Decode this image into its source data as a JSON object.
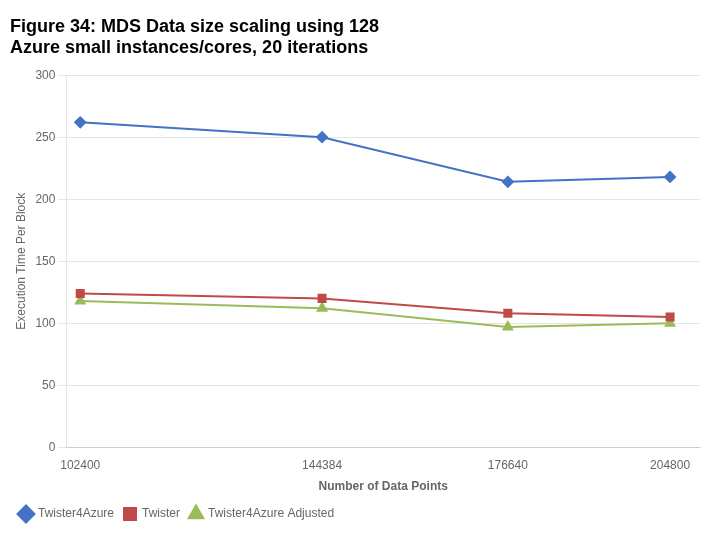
{
  "chart_data": {
    "type": "line",
    "title": [
      "Figure 34: MDS Data size scaling using 128",
      "Azure small instances/cores, 20 iterations"
    ],
    "x_label": "Number of Data Points",
    "y_label": "Execution Time Per Block",
    "x": [
      102400,
      144384,
      176640,
      204800
    ],
    "series": [
      {
        "name": "Twister4Azure",
        "color": "#4472C4",
        "marker": "diamond",
        "values": [
          262,
          250,
          214,
          218
        ]
      },
      {
        "name": "Twister",
        "color": "#BE4B48",
        "marker": "square",
        "values": [
          124,
          120,
          108,
          105
        ]
      },
      {
        "name": "Twister4Azure Adjusted",
        "color": "#9BBB59",
        "marker": "triangle",
        "values": [
          118,
          112,
          97,
          100
        ]
      }
    ],
    "xlim": [
      100000,
      210000
    ],
    "xticks": [
      102400,
      144384,
      176640,
      204800
    ],
    "ylim": [
      0,
      300
    ],
    "yticks": [
      0,
      50,
      100,
      150,
      200,
      250,
      300
    ],
    "grid": true,
    "legend": "lower left"
  }
}
